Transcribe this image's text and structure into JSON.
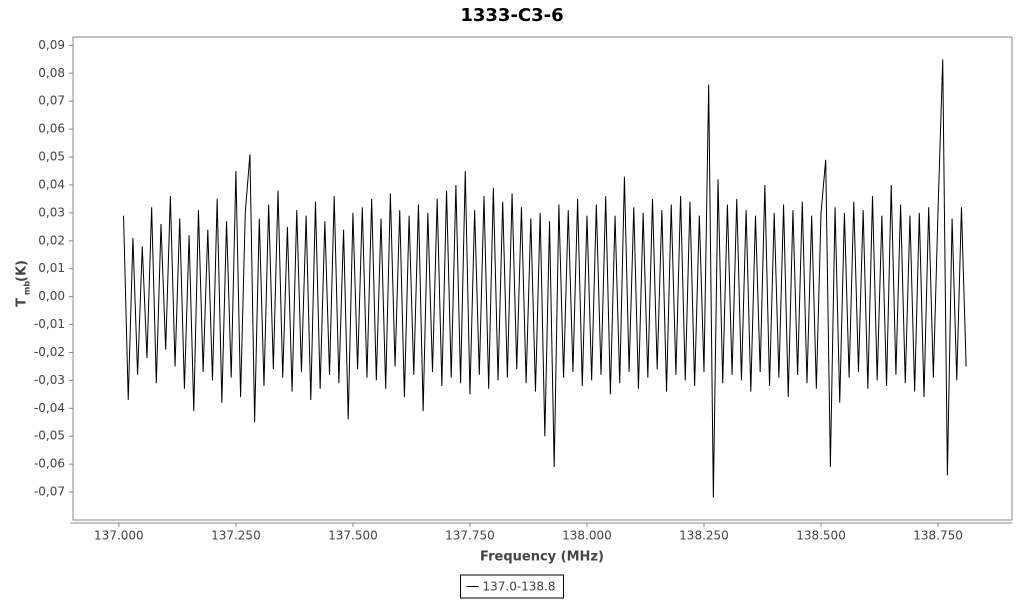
{
  "chart_data": {
    "type": "line",
    "title": "1333-C3-6",
    "xlabel": "Frequency (MHz)",
    "ylabel": {
      "main": "T",
      "sub": "mb",
      "unit": "(K)"
    },
    "xlim": [
      136.902,
      138.908
    ],
    "ylim": [
      -0.08,
      0.093
    ],
    "xticks": [
      {
        "value": 137.0,
        "label": "137.000"
      },
      {
        "value": 137.25,
        "label": "137.250"
      },
      {
        "value": 137.5,
        "label": "137.500"
      },
      {
        "value": 137.75,
        "label": "137.750"
      },
      {
        "value": 138.0,
        "label": "138.000"
      },
      {
        "value": 138.25,
        "label": "138.250"
      },
      {
        "value": 138.5,
        "label": "138.500"
      },
      {
        "value": 138.75,
        "label": "138.750"
      }
    ],
    "yticks": [
      {
        "value": -0.07,
        "label": "-0,07"
      },
      {
        "value": -0.06,
        "label": "-0,06"
      },
      {
        "value": -0.05,
        "label": "-0,05"
      },
      {
        "value": -0.04,
        "label": "-0,04"
      },
      {
        "value": -0.03,
        "label": "-0,03"
      },
      {
        "value": -0.02,
        "label": "-0,02"
      },
      {
        "value": -0.01,
        "label": "-0,01"
      },
      {
        "value": 0,
        "label": "0,00"
      },
      {
        "value": 0.01,
        "label": "0,01"
      },
      {
        "value": 0.02,
        "label": "0,02"
      },
      {
        "value": 0.03,
        "label": "0,03"
      },
      {
        "value": 0.04,
        "label": "0,04"
      },
      {
        "value": 0.05,
        "label": "0,05"
      },
      {
        "value": 0.06,
        "label": "0,06"
      },
      {
        "value": 0.07,
        "label": "0,07"
      },
      {
        "value": 0.08,
        "label": "0,08"
      },
      {
        "value": 0.09,
        "label": "0,09"
      }
    ],
    "grid": false,
    "legend": "bottom",
    "x": [
      137.01,
      137.02,
      137.03,
      137.04,
      137.05,
      137.06,
      137.07,
      137.08,
      137.09,
      137.1,
      137.11,
      137.12,
      137.13,
      137.14,
      137.15,
      137.16,
      137.17,
      137.18,
      137.19,
      137.2,
      137.21,
      137.22,
      137.23,
      137.24,
      137.25,
      137.26,
      137.27,
      137.28,
      137.29,
      137.3,
      137.31,
      137.32,
      137.33,
      137.34,
      137.35,
      137.36,
      137.37,
      137.38,
      137.39,
      137.4,
      137.41,
      137.42,
      137.43,
      137.44,
      137.45,
      137.46,
      137.47,
      137.48,
      137.49,
      137.5,
      137.51,
      137.52,
      137.53,
      137.54,
      137.55,
      137.56,
      137.57,
      137.58,
      137.59,
      137.6,
      137.61,
      137.62,
      137.63,
      137.64,
      137.65,
      137.66,
      137.67,
      137.68,
      137.69,
      137.7,
      137.71,
      137.72,
      137.73,
      137.74,
      137.75,
      137.76,
      137.77,
      137.78,
      137.79,
      137.8,
      137.81,
      137.82,
      137.83,
      137.84,
      137.85,
      137.86,
      137.87,
      137.88,
      137.89,
      137.9,
      137.91,
      137.92,
      137.93,
      137.94,
      137.95,
      137.96,
      137.97,
      137.98,
      137.99,
      138.0,
      138.01,
      138.02,
      138.03,
      138.04,
      138.05,
      138.06,
      138.07,
      138.08,
      138.09,
      138.1,
      138.11,
      138.12,
      138.13,
      138.14,
      138.15,
      138.16,
      138.17,
      138.18,
      138.19,
      138.2,
      138.21,
      138.22,
      138.23,
      138.24,
      138.25,
      138.26,
      138.27,
      138.28,
      138.29,
      138.3,
      138.31,
      138.32,
      138.33,
      138.34,
      138.35,
      138.36,
      138.37,
      138.38,
      138.39,
      138.4,
      138.41,
      138.42,
      138.43,
      138.44,
      138.45,
      138.46,
      138.47,
      138.48,
      138.49,
      138.5,
      138.51,
      138.52,
      138.53,
      138.54,
      138.55,
      138.56,
      138.57,
      138.58,
      138.59,
      138.6,
      138.61,
      138.62,
      138.63,
      138.64,
      138.65,
      138.66,
      138.67,
      138.68,
      138.69,
      138.7,
      138.71,
      138.72,
      138.73,
      138.74,
      138.75,
      138.76,
      138.77,
      138.78,
      138.79,
      138.8,
      138.81
    ],
    "series": [
      {
        "name": "137.0-138.8",
        "color": "#000000",
        "values": [
          0.029,
          -0.037,
          0.021,
          -0.028,
          0.018,
          -0.022,
          0.032,
          -0.031,
          0.026,
          -0.019,
          0.036,
          -0.025,
          0.028,
          -0.033,
          0.022,
          -0.041,
          0.031,
          -0.027,
          0.024,
          -0.03,
          0.035,
          -0.038,
          0.027,
          -0.029,
          0.045,
          -0.036,
          0.03,
          0.051,
          -0.045,
          0.028,
          -0.032,
          0.033,
          -0.026,
          0.038,
          -0.029,
          0.025,
          -0.034,
          0.031,
          -0.027,
          0.029,
          -0.037,
          0.034,
          -0.033,
          0.027,
          -0.028,
          0.036,
          -0.031,
          0.024,
          -0.044,
          0.03,
          -0.026,
          0.032,
          -0.029,
          0.035,
          -0.03,
          0.028,
          -0.033,
          0.037,
          -0.025,
          0.031,
          -0.036,
          0.029,
          -0.028,
          0.033,
          -0.041,
          0.03,
          -0.027,
          0.035,
          -0.032,
          0.038,
          -0.029,
          0.04,
          -0.031,
          0.045,
          -0.035,
          0.031,
          -0.028,
          0.036,
          -0.033,
          0.039,
          -0.03,
          0.034,
          -0.029,
          0.037,
          -0.026,
          0.032,
          -0.031,
          0.028,
          -0.034,
          0.03,
          -0.05,
          0.027,
          -0.061,
          0.033,
          -0.029,
          0.031,
          -0.027,
          0.035,
          -0.032,
          0.029,
          -0.03,
          0.033,
          -0.028,
          0.036,
          -0.035,
          0.029,
          -0.031,
          0.043,
          -0.027,
          0.032,
          -0.033,
          0.03,
          -0.029,
          0.035,
          -0.026,
          0.031,
          -0.034,
          0.033,
          -0.028,
          0.036,
          -0.03,
          0.034,
          -0.032,
          0.029,
          -0.027,
          0.076,
          -0.072,
          0.042,
          -0.031,
          0.033,
          -0.028,
          0.035,
          -0.03,
          0.031,
          -0.034,
          0.029,
          -0.027,
          0.04,
          -0.032,
          0.03,
          -0.029,
          0.033,
          -0.036,
          0.031,
          -0.028,
          0.034,
          -0.031,
          0.029,
          -0.033,
          0.03,
          0.049,
          -0.061,
          0.032,
          -0.038,
          0.03,
          -0.029,
          0.034,
          -0.027,
          0.031,
          -0.033,
          0.036,
          -0.03,
          0.029,
          -0.032,
          0.04,
          -0.028,
          0.033,
          -0.031,
          0.029,
          -0.034,
          0.03,
          -0.036,
          0.032,
          -0.029,
          0.031,
          0.085,
          -0.064,
          0.028,
          -0.03,
          0.032,
          -0.025
        ]
      }
    ]
  }
}
